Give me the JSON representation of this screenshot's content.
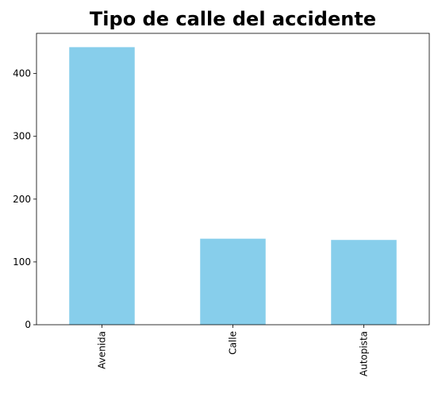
{
  "chart_data": {
    "type": "bar",
    "title": "Tipo de calle del accidente",
    "categories": [
      "Avenida",
      "Calle",
      "Autopista"
    ],
    "values": [
      442,
      137,
      135
    ],
    "xlabel": "",
    "ylabel": "",
    "ylim": [
      0,
      464
    ],
    "yticks": [
      0,
      100,
      200,
      300,
      400
    ],
    "ytick_labels": [
      "0",
      "100",
      "200",
      "300",
      "400"
    ],
    "xtick_rotation": "vertical",
    "grid": false,
    "legend": false,
    "bar_color": "#87CEEB"
  }
}
